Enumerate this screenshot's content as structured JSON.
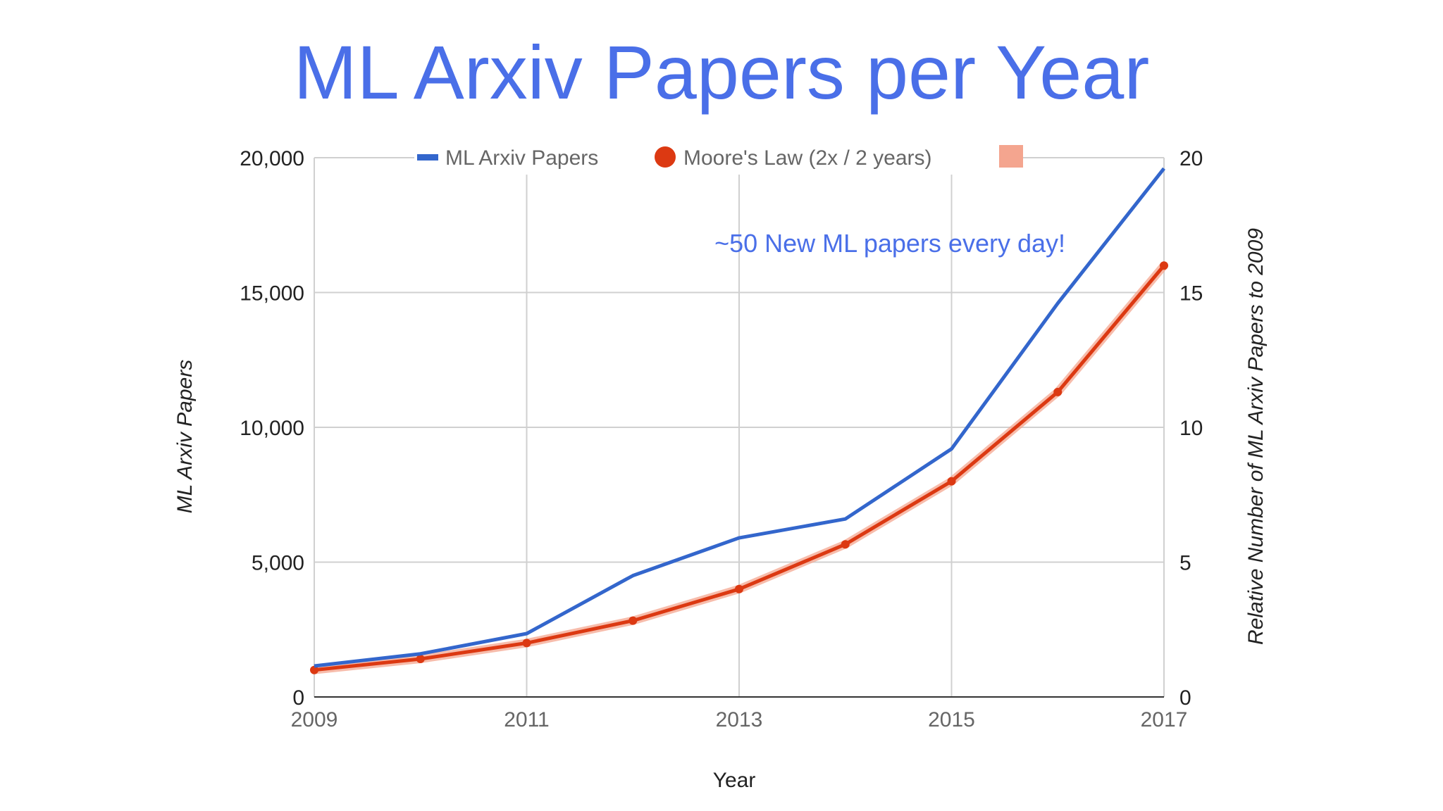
{
  "chart_data": {
    "type": "line",
    "title": "ML Arxiv Papers per Year",
    "annotation": "~50 New ML papers every day!",
    "xlabel": "Year",
    "ylabel_left": "ML Arxiv Papers",
    "ylabel_right": "Relative Number of ML Arxiv Papers  to 2009",
    "x": [
      2009,
      2010,
      2011,
      2012,
      2013,
      2014,
      2015,
      2016,
      2017
    ],
    "x_tick_labels": [
      "2009",
      "2011",
      "2013",
      "2015",
      "2017"
    ],
    "x_tick_values": [
      2009,
      2011,
      2013,
      2015,
      2017
    ],
    "xlim": [
      2009,
      2017
    ],
    "ylim_left": [
      0,
      20000
    ],
    "ylim_right": [
      0,
      20
    ],
    "y_tick_labels_left": [
      "0",
      "5,000",
      "10,000",
      "15,000",
      "20,000"
    ],
    "y_tick_values_left": [
      0,
      5000,
      10000,
      15000,
      20000
    ],
    "y_tick_labels_right": [
      "0",
      "5",
      "10",
      "15",
      "20"
    ],
    "grid": true,
    "legend_position": "top",
    "series": [
      {
        "name": "ML Arxiv Papers",
        "axis": "left",
        "color": "#3366cc",
        "marker": "none",
        "values": [
          1150,
          1600,
          2350,
          4500,
          5900,
          6600,
          9200,
          14600,
          19600
        ]
      },
      {
        "name": "Moore's Law (2x / 2 years)",
        "axis": "right",
        "color": "#dc3912",
        "marker": "circle",
        "values": [
          1.0,
          1.41,
          2.0,
          2.83,
          4.0,
          5.66,
          8.0,
          11.31,
          16.0
        ]
      },
      {
        "name": "",
        "axis": "right",
        "color": "#f4a58f",
        "marker": "square",
        "values": [
          1.0,
          1.41,
          2.0,
          2.83,
          4.0,
          5.66,
          8.0,
          11.31,
          16.0
        ]
      }
    ],
    "colors": {
      "title": "#4a6fe8",
      "annotation": "#4a6fe8",
      "grid": "#d0d0d0",
      "axis_line": "#333333"
    }
  }
}
